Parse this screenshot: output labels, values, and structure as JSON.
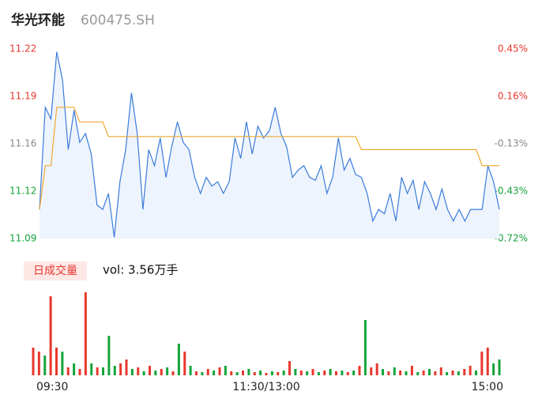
{
  "header": {
    "title": "华光环能",
    "code": "600475.SH"
  },
  "chart_data": [
    {
      "type": "line",
      "ylim": [
        11.09,
        11.22
      ],
      "yticks": [
        {
          "value": 11.09,
          "label": "11.09"
        },
        {
          "value": 11.1225,
          "label": "11.12"
        },
        {
          "value": 11.155,
          "label": "11.16"
        },
        {
          "value": 11.1875,
          "label": "11.19"
        },
        {
          "value": 11.22,
          "label": "11.22"
        }
      ],
      "ytick_colors": [
        "#13a43a",
        "#13a43a",
        "#888888",
        "#e8372c",
        "#e8372c"
      ],
      "y2lim": [
        -0.72,
        0.45
      ],
      "y2ticks": [
        {
          "value": -0.72,
          "label": "-0.72%"
        },
        {
          "value": -0.4275,
          "label": "-0.43%"
        },
        {
          "value": -0.135,
          "label": "-0.13%"
        },
        {
          "value": 0.1575,
          "label": "0.16%"
        },
        {
          "value": 0.45,
          "label": "0.45%"
        }
      ],
      "y2tick_colors": [
        "#13a43a",
        "#13a43a",
        "#888888",
        "#e8372c",
        "#e8372c"
      ],
      "series": [
        {
          "color": "#3a7bdc",
          "values": [
            11.11,
            11.18,
            11.172,
            11.218,
            11.199,
            11.151,
            11.178,
            11.156,
            11.162,
            11.148,
            11.113,
            11.11,
            11.121,
            11.091,
            11.129,
            11.151,
            11.19,
            11.162,
            11.11,
            11.151,
            11.14,
            11.159,
            11.132,
            11.153,
            11.17,
            11.156,
            11.151,
            11.132,
            11.121,
            11.132,
            11.126,
            11.129,
            11.121,
            11.129,
            11.159,
            11.145,
            11.17,
            11.148,
            11.167,
            11.159,
            11.164,
            11.18,
            11.162,
            11.153,
            11.132,
            11.137,
            11.14,
            11.132,
            11.13,
            11.14,
            11.121,
            11.132,
            11.159,
            11.137,
            11.145,
            11.134,
            11.132,
            11.121,
            11.102,
            11.11,
            11.107,
            11.121,
            11.102,
            11.132,
            11.121,
            11.13,
            11.11,
            11.129,
            11.121,
            11.11,
            11.124,
            11.11,
            11.102,
            11.11,
            11.102,
            11.11,
            11.11,
            11.11,
            11.14,
            11.129,
            11.11
          ]
        },
        {
          "color": "#f0a830",
          "values": [
            11.11,
            11.14,
            11.14,
            11.18,
            11.18,
            11.18,
            11.18,
            11.17,
            11.17,
            11.17,
            11.17,
            11.17,
            11.16,
            11.16,
            11.16,
            11.16,
            11.16,
            11.16,
            11.16,
            11.16,
            11.16,
            11.16,
            11.16,
            11.16,
            11.16,
            11.16,
            11.16,
            11.16,
            11.16,
            11.16,
            11.16,
            11.16,
            11.16,
            11.16,
            11.16,
            11.16,
            11.16,
            11.16,
            11.16,
            11.16,
            11.16,
            11.16,
            11.16,
            11.16,
            11.16,
            11.16,
            11.16,
            11.16,
            11.16,
            11.16,
            11.16,
            11.16,
            11.16,
            11.16,
            11.16,
            11.16,
            11.151,
            11.151,
            11.151,
            11.151,
            11.151,
            11.151,
            11.151,
            11.151,
            11.151,
            11.151,
            11.151,
            11.151,
            11.151,
            11.151,
            11.151,
            11.151,
            11.151,
            11.151,
            11.151,
            11.151,
            11.151,
            11.14,
            11.14,
            11.14,
            11.14
          ]
        }
      ]
    },
    {
      "type": "bar",
      "button": "日成交量",
      "label": "vol: 3.56万手",
      "ylim": [
        0,
        110
      ],
      "categories": [
        "09:30",
        null,
        null,
        null,
        null,
        null,
        null,
        null,
        null,
        null,
        null,
        null,
        null,
        null,
        null,
        null,
        null,
        null,
        null,
        null,
        null,
        null,
        null,
        null,
        null,
        null,
        null,
        null,
        null,
        null,
        null,
        null,
        null,
        null,
        null,
        null,
        null,
        null,
        null,
        null,
        "11:30/13:00",
        null,
        null,
        null,
        null,
        null,
        null,
        null,
        null,
        null,
        null,
        null,
        null,
        null,
        null,
        null,
        null,
        null,
        null,
        null,
        null,
        null,
        null,
        null,
        null,
        null,
        null,
        null,
        null,
        null,
        null,
        null,
        null,
        null,
        null,
        null,
        null,
        null,
        null,
        null,
        "15:00"
      ],
      "values": [
        35,
        30,
        25,
        100,
        35,
        30,
        10,
        15,
        8,
        105,
        15,
        10,
        10,
        50,
        12,
        15,
        20,
        8,
        10,
        5,
        12,
        6,
        8,
        10,
        5,
        40,
        30,
        12,
        5,
        4,
        8,
        6,
        10,
        12,
        5,
        4,
        6,
        8,
        4,
        6,
        3,
        5,
        4,
        6,
        18,
        8,
        6,
        5,
        8,
        4,
        6,
        8,
        5,
        6,
        4,
        6,
        12,
        70,
        10,
        15,
        8,
        5,
        10,
        6,
        5,
        12,
        4,
        6,
        8,
        5,
        10,
        4,
        6,
        5,
        8,
        12,
        6,
        30,
        35,
        15,
        20
      ],
      "colors": [
        "#e8372c",
        "#e8372c",
        "#13a43a",
        "#e8372c",
        "#e8372c",
        "#13a43a",
        "#e8372c",
        "#13a43a",
        "#e8372c",
        "#e8372c",
        "#13a43a",
        "#e8372c",
        "#13a43a",
        "#13a43a",
        "#13a43a",
        "#e8372c",
        "#e8372c",
        "#13a43a",
        "#e8372c",
        "#13a43a",
        "#e8372c",
        "#13a43a",
        "#e8372c",
        "#13a43a",
        "#e8372c",
        "#13a43a",
        "#e8372c",
        "#13a43a",
        "#e8372c",
        "#13a43a",
        "#e8372c",
        "#13a43a",
        "#e8372c",
        "#13a43a",
        "#e8372c",
        "#13a43a",
        "#e8372c",
        "#13a43a",
        "#e8372c",
        "#13a43a",
        "#e8372c",
        "#13a43a",
        "#e8372c",
        "#13a43a",
        "#e8372c",
        "#13a43a",
        "#e8372c",
        "#13a43a",
        "#e8372c",
        "#13a43a",
        "#e8372c",
        "#13a43a",
        "#e8372c",
        "#13a43a",
        "#e8372c",
        "#13a43a",
        "#e8372c",
        "#13a43a",
        "#e8372c",
        "#e8372c",
        "#13a43a",
        "#e8372c",
        "#13a43a",
        "#e8372c",
        "#13a43a",
        "#e8372c",
        "#13a43a",
        "#e8372c",
        "#13a43a",
        "#e8372c",
        "#e8372c",
        "#13a43a",
        "#e8372c",
        "#13a43a",
        "#e8372c",
        "#e8372c",
        "#13a43a",
        "#e8372c",
        "#e8372c",
        "#13a43a",
        "#13a43a"
      ]
    }
  ]
}
